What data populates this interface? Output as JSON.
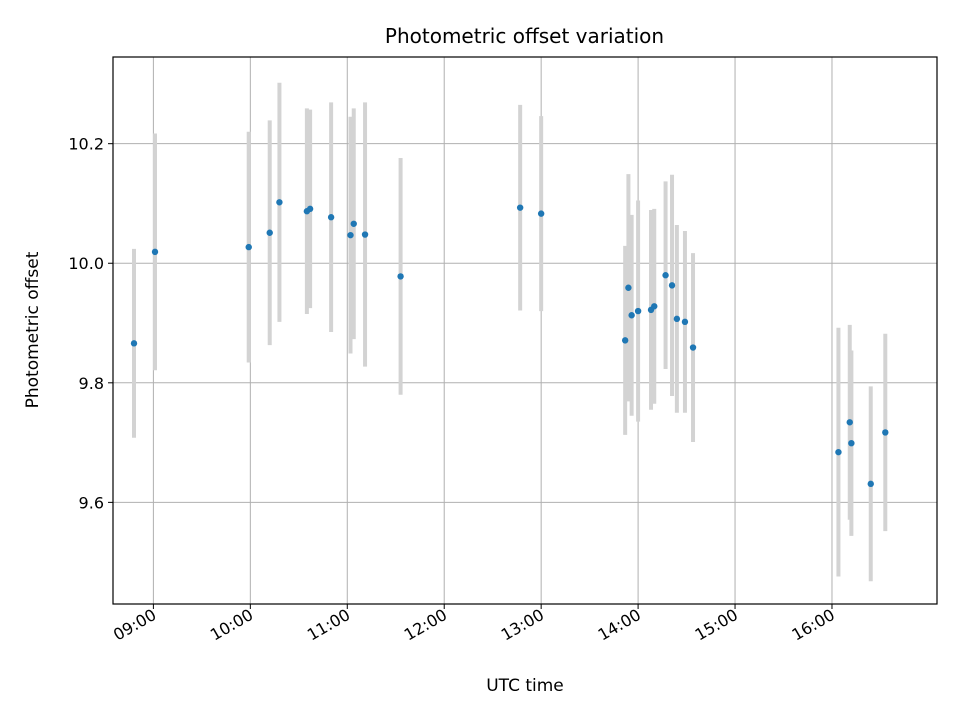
{
  "chart_data": {
    "type": "scatter",
    "title": "Photometric offset variation",
    "xlabel": "UTC time",
    "ylabel": "Photometric offset",
    "x_axis_type": "time",
    "xlim": [
      "08:35",
      "17:05"
    ],
    "ylim": [
      9.43,
      10.345
    ],
    "x_ticks": [
      "09:00",
      "10:00",
      "11:00",
      "12:00",
      "13:00",
      "14:00",
      "15:00",
      "16:00"
    ],
    "y_ticks": [
      9.6,
      9.8,
      10.0,
      10.2
    ],
    "y_tick_labels": [
      "9.6",
      "9.8",
      "10.0",
      "10.2"
    ],
    "grid": true,
    "legend": "none",
    "colors": {
      "point": "#1f77b4",
      "errorbar": "#d3d3d3",
      "grid": "#b0b0b0"
    },
    "series": [
      {
        "points": [
          {
            "x": "08:48",
            "y": 9.866,
            "yerr": 0.158
          },
          {
            "x": "09:01",
            "y": 10.019,
            "yerr": 0.198
          },
          {
            "x": "09:59",
            "y": 10.027,
            "yerr": 0.193
          },
          {
            "x": "10:12",
            "y": 10.051,
            "yerr": 0.188
          },
          {
            "x": "10:18",
            "y": 10.102,
            "yerr": 0.2
          },
          {
            "x": "10:35",
            "y": 10.087,
            "yerr": 0.172
          },
          {
            "x": "10:37",
            "y": 10.091,
            "yerr": 0.166
          },
          {
            "x": "10:50",
            "y": 10.077,
            "yerr": 0.192
          },
          {
            "x": "11:02",
            "y": 10.047,
            "yerr": 0.198
          },
          {
            "x": "11:04",
            "y": 10.066,
            "yerr": 0.193
          },
          {
            "x": "11:11",
            "y": 10.048,
            "yerr": 0.221
          },
          {
            "x": "11:33",
            "y": 9.978,
            "yerr": 0.198
          },
          {
            "x": "12:47",
            "y": 10.093,
            "yerr": 0.172
          },
          {
            "x": "13:00",
            "y": 10.083,
            "yerr": 0.163
          },
          {
            "x": "13:52",
            "y": 9.871,
            "yerr": 0.158
          },
          {
            "x": "13:54",
            "y": 9.959,
            "yerr": 0.19
          },
          {
            "x": "13:56",
            "y": 9.913,
            "yerr": 0.168
          },
          {
            "x": "14:00",
            "y": 9.92,
            "yerr": 0.185
          },
          {
            "x": "14:08",
            "y": 9.922,
            "yerr": 0.167
          },
          {
            "x": "14:10",
            "y": 9.928,
            "yerr": 0.163
          },
          {
            "x": "14:17",
            "y": 9.98,
            "yerr": 0.157
          },
          {
            "x": "14:21",
            "y": 9.963,
            "yerr": 0.185
          },
          {
            "x": "14:24",
            "y": 9.907,
            "yerr": 0.157
          },
          {
            "x": "14:29",
            "y": 9.902,
            "yerr": 0.152
          },
          {
            "x": "14:34",
            "y": 9.859,
            "yerr": 0.158
          },
          {
            "x": "16:04",
            "y": 9.684,
            "yerr": 0.208
          },
          {
            "x": "16:11",
            "y": 9.734,
            "yerr": 0.163
          },
          {
            "x": "16:12",
            "y": 9.699,
            "yerr": 0.155
          },
          {
            "x": "16:24",
            "y": 9.631,
            "yerr": 0.163
          },
          {
            "x": "16:33",
            "y": 9.717,
            "yerr": 0.165
          }
        ]
      }
    ]
  }
}
